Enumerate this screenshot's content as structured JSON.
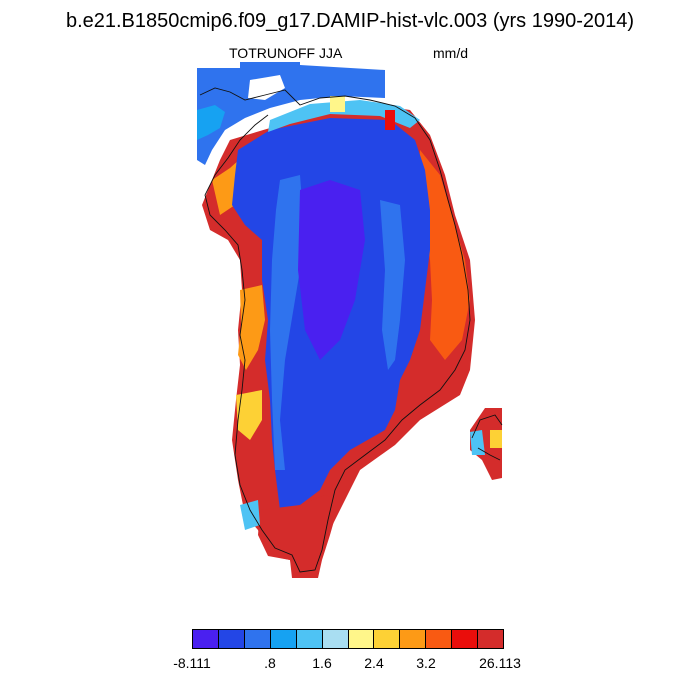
{
  "title": "b.e21.B1850cmip6.f09_g17.DAMIP-hist-vlc.003 (yrs 1990-2014)",
  "variable": "TOTRUNOFF JJA",
  "units": "mm/d",
  "colors": {
    "c0": "#4a20f0",
    "c1": "#2346e6",
    "c2": "#2f73ee",
    "c3": "#16a2f2",
    "c4": "#4ec3f4",
    "c5": "#a9def2",
    "c6": "#fff68a",
    "c7": "#fdd135",
    "c8": "#fd9a16",
    "c9": "#f95a12",
    "c10": "#ea0d0b",
    "c11": "#d42c2b",
    "outline": "#111111"
  },
  "colorbar": {
    "colors": [
      "#4a20f0",
      "#2346e6",
      "#2f73ee",
      "#16a2f2",
      "#4ec3f4",
      "#a9def2",
      "#fff68a",
      "#fdd135",
      "#fd9a16",
      "#f95a12",
      "#ea0d0b",
      "#d42c2b"
    ],
    "labels": [
      "-8.111",
      ".8",
      "1.6",
      "2.4",
      "3.2",
      "26.113"
    ]
  }
}
